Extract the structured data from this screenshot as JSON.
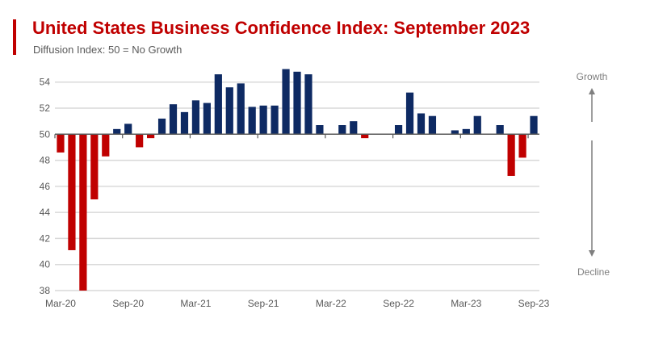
{
  "chart_data": {
    "type": "bar",
    "title": "United States Business Confidence Index: September 2023",
    "subtitle": "Diffusion Index: 50 = No Growth",
    "xlabel": "",
    "ylabel": "",
    "baseline": 50,
    "ylim": [
      38,
      55
    ],
    "yticks": [
      38,
      40,
      42,
      44,
      46,
      48,
      50,
      52,
      54
    ],
    "grid": true,
    "legend": "none",
    "categories": [
      "Mar-20",
      "Apr-20",
      "May-20",
      "Jun-20",
      "Jul-20",
      "Aug-20",
      "Sep-20",
      "Oct-20",
      "Nov-20",
      "Dec-20",
      "Jan-21",
      "Feb-21",
      "Mar-21",
      "Apr-21",
      "May-21",
      "Jun-21",
      "Jul-21",
      "Aug-21",
      "Sep-21",
      "Oct-21",
      "Nov-21",
      "Dec-21",
      "Jan-22",
      "Feb-22",
      "Mar-22",
      "Apr-22",
      "May-22",
      "Jun-22",
      "Jul-22",
      "Aug-22",
      "Sep-22",
      "Oct-22",
      "Nov-22",
      "Dec-22",
      "Jan-23",
      "Feb-23",
      "Mar-23",
      "Apr-23",
      "May-23",
      "Jun-23",
      "Jul-23",
      "Aug-23",
      "Sep-23"
    ],
    "values": [
      48.6,
      41.1,
      37.9,
      45.0,
      48.3,
      50.4,
      50.8,
      49.0,
      49.7,
      51.2,
      52.3,
      51.7,
      52.6,
      52.4,
      54.6,
      53.6,
      53.9,
      52.1,
      52.2,
      52.2,
      55.0,
      54.8,
      54.6,
      50.7,
      50.0,
      50.7,
      51.0,
      49.7,
      50.0,
      50.0,
      50.7,
      53.2,
      51.6,
      51.4,
      50.0,
      50.3,
      50.4,
      51.4,
      50.0,
      50.7,
      46.8,
      48.2,
      51.4
    ],
    "xtick_labels": [
      "Mar-20",
      "Sep-20",
      "Mar-21",
      "Sep-21",
      "Mar-22",
      "Sep-22",
      "Mar-23",
      "Sep-23"
    ],
    "colors": {
      "growth": "#0e2a63",
      "decline": "#c00000",
      "grid": "#d9d9d9",
      "axis": "#595959"
    },
    "annotations": {
      "top": "Growth",
      "bottom": "Decline"
    }
  }
}
